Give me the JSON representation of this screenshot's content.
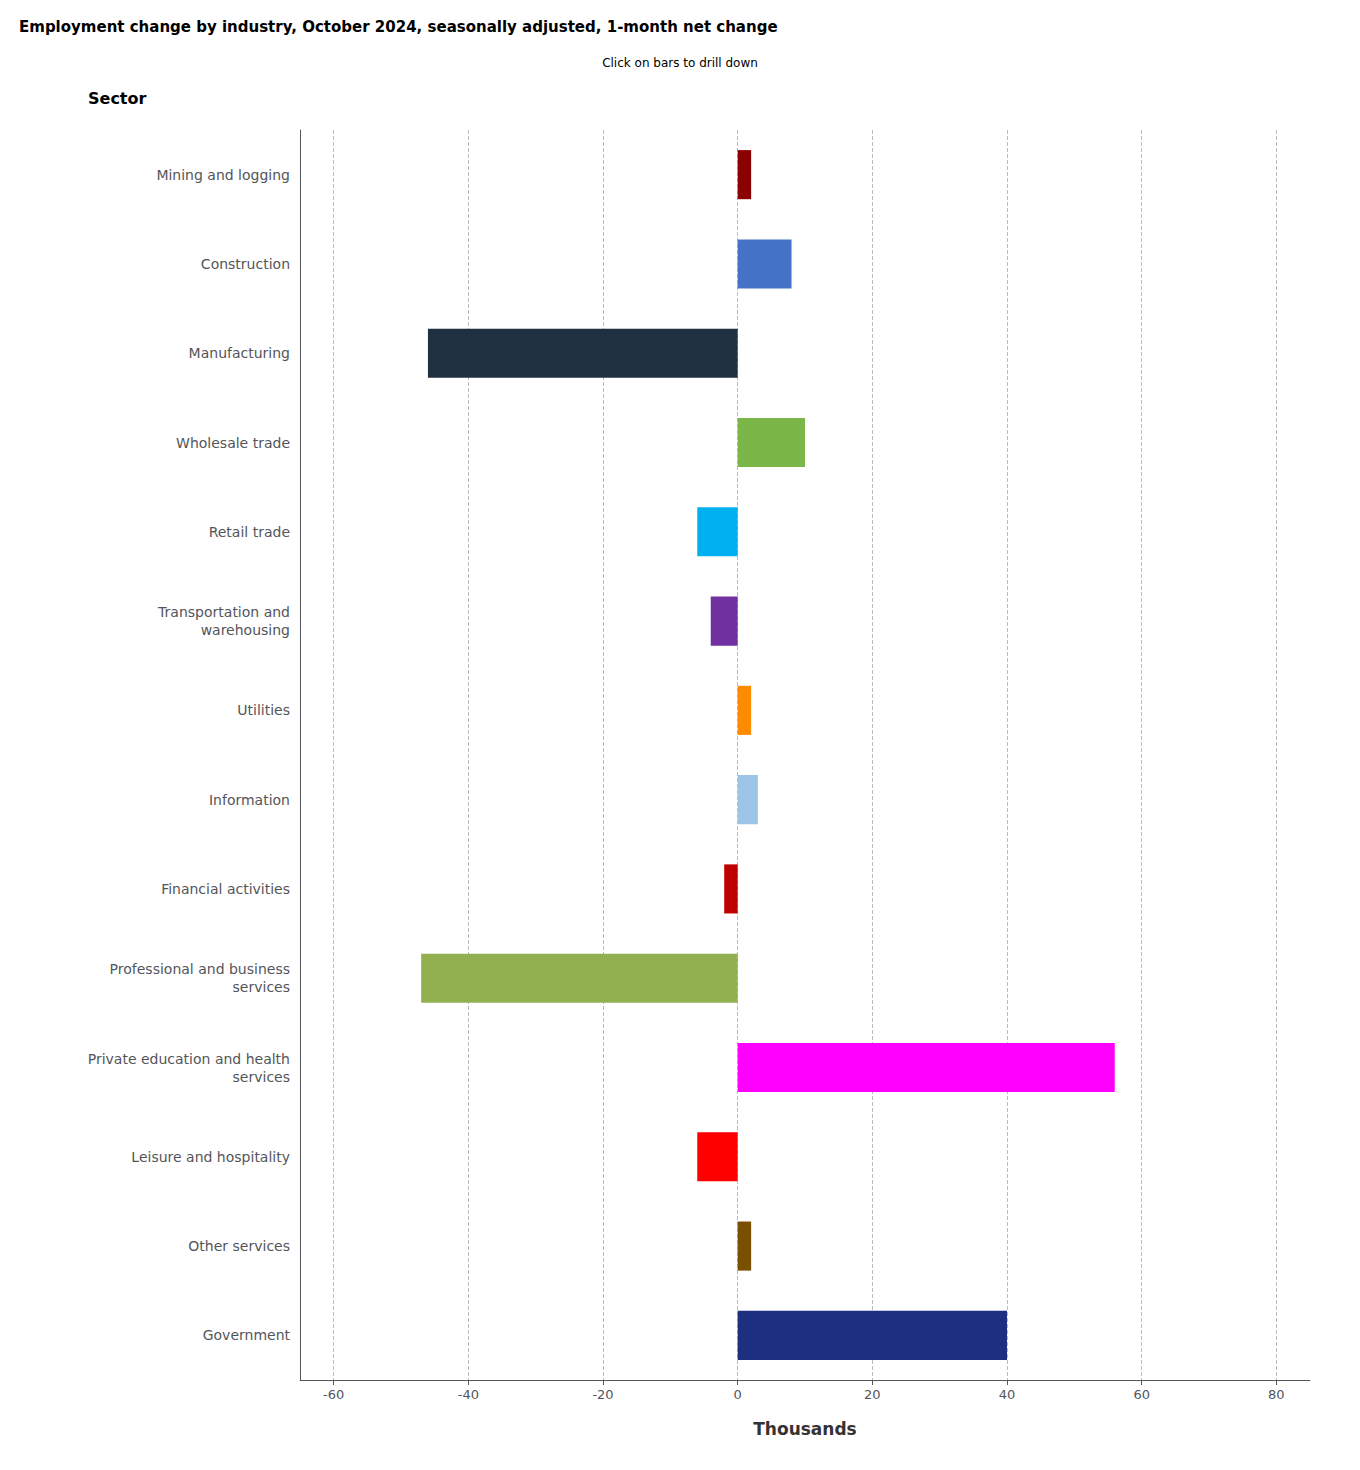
{
  "chart_data": {
    "type": "bar",
    "orientation": "horizontal",
    "title": "Employment change by industry, October 2024, seasonally adjusted, 1-month net change",
    "subtitle": "Click on bars to drill down",
    "xlabel": "Thousands",
    "ylabel": "Sector",
    "categories": [
      "Mining and logging",
      "Construction",
      "Manufacturing",
      "Wholesale trade",
      "Retail trade",
      "Transportation and\nwarehousing",
      "Utilities",
      "Information",
      "Financial activities",
      "Professional and business\nservices",
      "Private education and health\nservices",
      "Leisure and hospitality",
      "Other services",
      "Government"
    ],
    "values": [
      2,
      8,
      -46,
      10,
      -6,
      -4,
      2,
      3,
      -2,
      -47,
      56,
      -6,
      2,
      40
    ],
    "colors": [
      "#8B0000",
      "#4472C4",
      "#1F3040",
      "#7AB648",
      "#00B0F0",
      "#7030A0",
      "#FF8C00",
      "#9DC3E6",
      "#C00000",
      "#92B050",
      "#FF00FF",
      "#FF0000",
      "#7B4F00",
      "#1F2F7F"
    ],
    "xlim": [
      -65,
      85
    ],
    "xticks": [
      -60,
      -40,
      -20,
      0,
      20,
      40,
      60,
      80
    ],
    "grid": true
  }
}
